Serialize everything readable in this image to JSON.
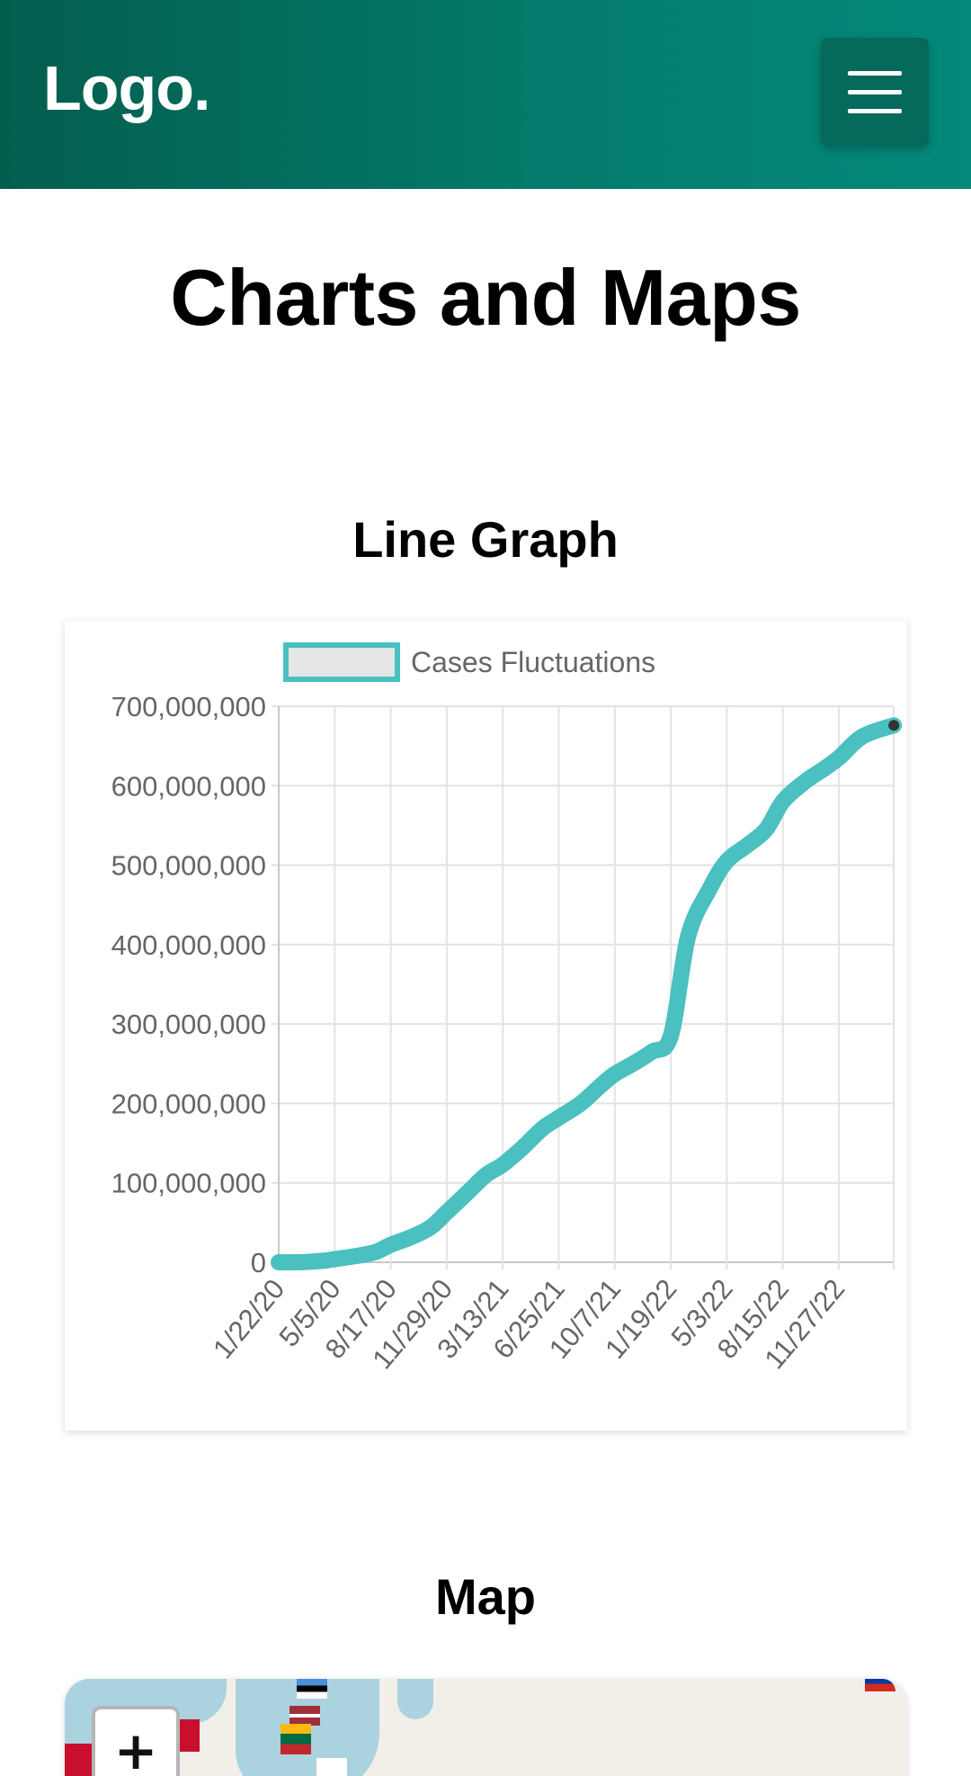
{
  "header": {
    "logo": "Logo.",
    "menu_icon": "hamburger-menu-icon",
    "gradient": [
      "#035e4e",
      "#04897a"
    ]
  },
  "page": {
    "title": "Charts and Maps"
  },
  "line_section": {
    "title": "Line Graph"
  },
  "map_section": {
    "title": "Map",
    "zoom_in_label": "+",
    "colors": {
      "land": "#f2efe9",
      "water": "#aad3df"
    }
  },
  "chart_data": {
    "type": "line",
    "title": "",
    "xlabel": "",
    "ylabel": "",
    "ylim": [
      0,
      700000000
    ],
    "y_ticks": [
      0,
      100000000,
      200000000,
      300000000,
      400000000,
      500000000,
      600000000,
      700000000
    ],
    "y_tick_labels": [
      "0",
      "100,000,000",
      "200,000,000",
      "300,000,000",
      "400,000,000",
      "500,000,000",
      "600,000,000",
      "700,000,000"
    ],
    "x_tick_labels": [
      "1/22/20",
      "5/5/20",
      "8/17/20",
      "11/29/20",
      "3/13/21",
      "6/25/21",
      "10/7/21",
      "1/19/22",
      "5/3/22",
      "8/15/22",
      "11/27/22"
    ],
    "legend": {
      "position": "top",
      "label": "Cases Fluctuations"
    },
    "grid": true,
    "colors": {
      "line": "#4bc0c0",
      "legend_fill": "#e6e6e6"
    },
    "series": [
      {
        "name": "Cases Fluctuations",
        "x": [
          "1/22/20",
          "3/4/20",
          "4/15/20",
          "5/5/20",
          "6/15/20",
          "7/20/20",
          "8/17/20",
          "9/25/20",
          "10/30/20",
          "11/29/20",
          "1/10/21",
          "2/10/21",
          "3/13/21",
          "4/20/21",
          "5/25/21",
          "6/25/21",
          "8/5/21",
          "9/10/21",
          "10/7/21",
          "11/10/21",
          "12/15/21",
          "1/19/22",
          "2/20/22",
          "4/1/22",
          "5/3/22",
          "6/10/22",
          "7/15/22",
          "8/15/22",
          "9/25/22",
          "11/1/22",
          "11/27/22",
          "1/10/23",
          "3/9/23"
        ],
        "values": [
          0,
          200000,
          2000000,
          4000000,
          8000000,
          13000000,
          22000000,
          32000000,
          44000000,
          63000000,
          90000000,
          110000000,
          123000000,
          145000000,
          168000000,
          182000000,
          200000000,
          222000000,
          237000000,
          250000000,
          265000000,
          285000000,
          410000000,
          470000000,
          505000000,
          525000000,
          545000000,
          580000000,
          605000000,
          622000000,
          635000000,
          662000000,
          676000000
        ]
      }
    ]
  }
}
